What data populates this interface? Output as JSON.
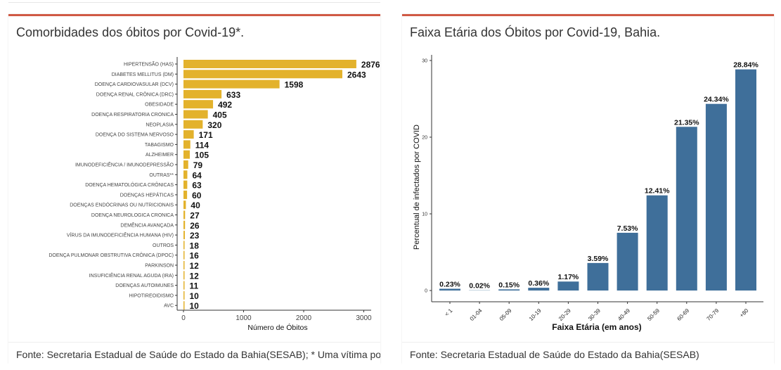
{
  "chart_data": [
    {
      "type": "bar",
      "orientation": "horizontal",
      "title": "Comorbidades dos óbitos por Covid-19*.",
      "xlabel": "Número de Óbitos",
      "ylabel": "",
      "xlim": [
        0,
        3000
      ],
      "xticks": [
        "0",
        "1000",
        "2000",
        "3000"
      ],
      "bar_color": "#e3b22c",
      "categories": [
        "HIPERTENSÃO (HAS)",
        "DIABETES MELLITUS (DM)",
        "DOENÇA CARDIOVASULAR (DCV)",
        "DOENÇA RENAL CRÔNICA (DRC)",
        "OBESIDADE",
        "DOENÇA RESPIRATORIA CRONICA",
        "NEOPLASIA",
        "DOENÇA DO SISTEMA NERVOSO",
        "TABAGISMO",
        "ALZHEIMER",
        "IMUNODEFICIÊNCIA / IMUNODEPRESSÃO",
        "OUTRAS**",
        "DOENÇA HEMATOLÓGICA CRÔNICAS",
        "DOENÇAS HEPÁTICAS",
        "DOENÇAS ENDÓCRINAS OU NUTRICIONAIS",
        "DOENÇA NEUROLOGICA CRONICA",
        "DEMÊNCIA AVANÇADA",
        "VÍRUS DA IMUNODEFICIÊNCIA HUMANA (HIV)",
        "OUTROS",
        "DOENÇA PULMONAR OBSTRUTIVA CRÔNICA (DPOC)",
        "PARKINSON",
        "INSUFICIÊNCIA RENAL AGUDA (IRA)",
        "DOENÇAS AUTOIMUNES",
        "HIPOTIREOIDISMO",
        "AVC"
      ],
      "values": [
        2876,
        2643,
        1598,
        633,
        492,
        405,
        320,
        171,
        114,
        105,
        79,
        64,
        63,
        60,
        40,
        27,
        26,
        23,
        18,
        16,
        12,
        12,
        11,
        10,
        10
      ],
      "footer": "Fonte: Secretaria Estadual de Saúde do Estado da Bahia(SESAB); * Uma vítima pode ter mais de uma comorbidade"
    },
    {
      "type": "bar",
      "title": "Faixa Etária dos Óbitos por Covid-19, Bahia.",
      "xlabel": "Faixa Etária (em anos)",
      "ylabel": "Percentual de infectados por COVID",
      "ylim": [
        0,
        30
      ],
      "yticks": [
        "0",
        "10",
        "20",
        "30"
      ],
      "bar_color": "#3f6f9a",
      "categories": [
        "< 1",
        "01-04",
        "05-09",
        "10-19",
        "20-29",
        "30-39",
        "40-49",
        "50-59",
        "60-69",
        "70-79",
        "+80"
      ],
      "values": [
        0.23,
        0.02,
        0.15,
        0.36,
        1.17,
        3.59,
        7.53,
        12.41,
        21.35,
        24.34,
        28.84
      ],
      "labels": [
        "0.23%",
        "0.02%",
        "0.15%",
        "0.36%",
        "1.17%",
        "3.59%",
        "7.53%",
        "12.41%",
        "21.35%",
        "24.34%",
        "28.84%"
      ],
      "footer": "Fonte: Secretaria Estadual de Saúde do Estado da Bahia(SESAB)"
    }
  ]
}
